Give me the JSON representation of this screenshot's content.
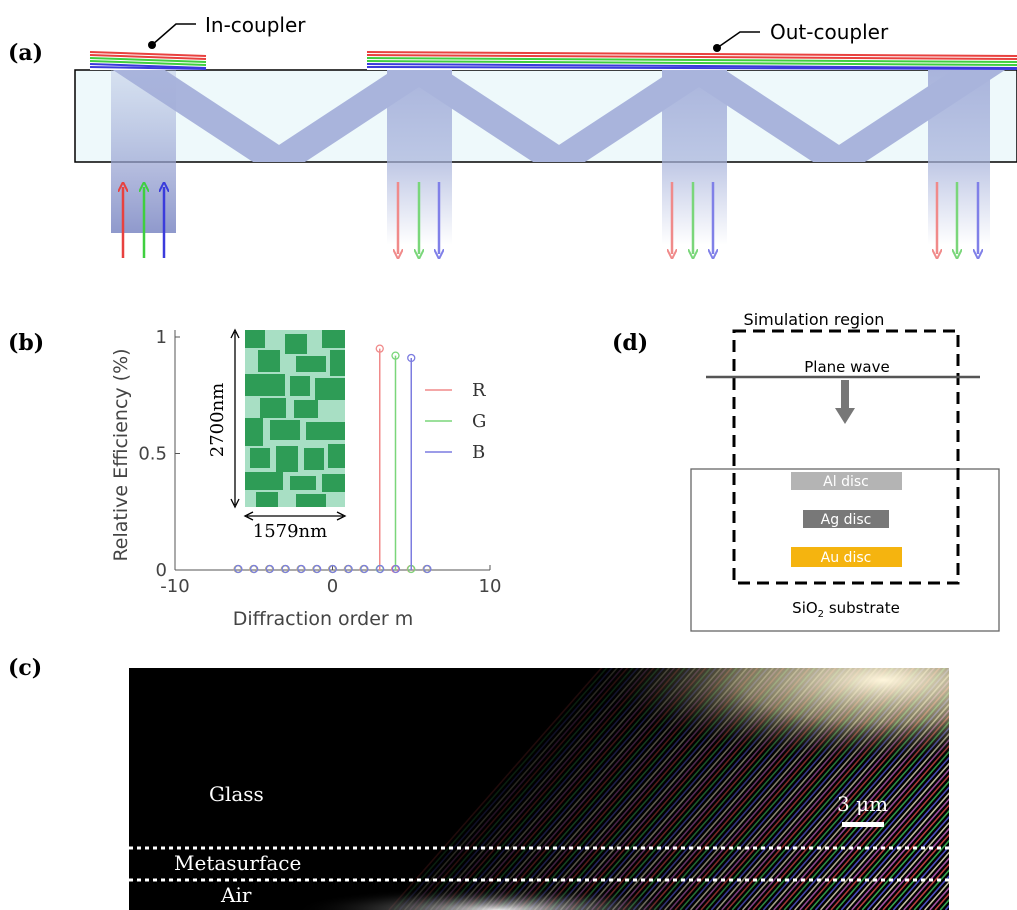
{
  "panels": {
    "a": {
      "label": "(a)",
      "in_coupler": "In-coupler",
      "out_coupler": "Out-coupler"
    },
    "b": {
      "label": "(b)",
      "inset_height": "2700nm",
      "inset_width": "1579nm"
    },
    "c": {
      "label": "(c)",
      "glass": "Glass",
      "metasurface": "Metasurface",
      "air": "Air",
      "scalebar": "3 μm"
    },
    "d": {
      "label": "(d)",
      "simulation_region": "Simulation region",
      "plane_wave": "Plane wave",
      "al_disc": "Al disc",
      "ag_disc": "Ag disc",
      "au_disc": "Au disc",
      "substrate": "SiO",
      "substrate_sub": "2",
      "substrate_suffix": " substrate"
    }
  },
  "colors": {
    "red": "#e8413f",
    "green": "#3fcf3f",
    "blue": "#3b3bdc",
    "waveguide": "#a9b4dc",
    "al": "#b4b4b4",
    "ag": "#787878",
    "au": "#f5b40f"
  },
  "chart_data": {
    "type": "stem",
    "xlabel": "Diffraction order m",
    "ylabel": "Relative Efficiency (%)",
    "xlim": [
      -10,
      10
    ],
    "ylim": [
      0,
      1
    ],
    "xticks": [
      -10,
      0,
      10
    ],
    "yticks": [
      0,
      0.5,
      1
    ],
    "xtick_labels": [
      "-10",
      "0",
      "10"
    ],
    "ytick_labels": [
      "0",
      "0.5",
      "1"
    ],
    "legend": [
      "R",
      "G",
      "B"
    ],
    "legend_position": "right",
    "series": [
      {
        "name": "R",
        "color": "#f08a8a",
        "x": [
          -6,
          -5,
          -4,
          -3,
          -2,
          -1,
          0,
          1,
          2,
          3,
          4,
          5,
          6
        ],
        "y": [
          0,
          0,
          0,
          0,
          0,
          0,
          0,
          0,
          0,
          0.95,
          0,
          0,
          0
        ]
      },
      {
        "name": "G",
        "color": "#7ad67a",
        "x": [
          -6,
          -5,
          -4,
          -3,
          -2,
          -1,
          0,
          1,
          2,
          3,
          4,
          5,
          6
        ],
        "y": [
          0,
          0,
          0,
          0,
          0,
          0,
          0,
          0,
          0,
          0,
          0.92,
          0,
          0
        ]
      },
      {
        "name": "B",
        "color": "#7c7ce0",
        "x": [
          -6,
          -5,
          -4,
          -3,
          -2,
          -1,
          0,
          1,
          2,
          3,
          4,
          5,
          6
        ],
        "y": [
          0,
          0,
          0,
          0,
          0,
          0,
          0,
          0,
          0,
          0,
          0,
          0.91,
          0
        ]
      }
    ]
  }
}
